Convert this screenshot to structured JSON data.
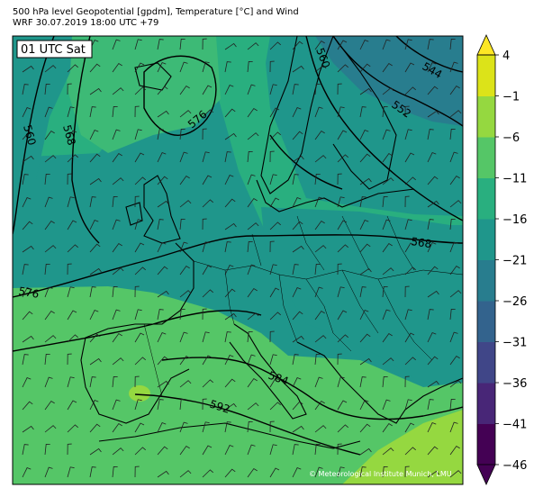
{
  "header": {
    "line1": "500 hPa level Geopotential [gpdm], Temperature [°C] and Wind",
    "line2": "WRF 30.07.2019 18:00 UTC +79"
  },
  "map": {
    "time_label": "01 UTC Sat",
    "copyright": "© Meteorological Institute Munich, LMU",
    "contour_labels": [
      "544",
      "552",
      "560",
      "560",
      "568",
      "568",
      "576",
      "576",
      "584",
      "592"
    ]
  },
  "colorbar": {
    "tick_labels": [
      "4",
      "−1",
      "−6",
      "−11",
      "−16",
      "−21",
      "−26",
      "−31",
      "−36",
      "−41",
      "−46"
    ],
    "colors": [
      "#440154",
      "#482677",
      "#404688",
      "#33638d",
      "#287d8e",
      "#1f968b",
      "#29af7f",
      "#55c667",
      "#95d840",
      "#dce319",
      "#fde725"
    ],
    "color_band_names": [
      "-46 to -41",
      "-41 to -36",
      "-36 to -31",
      "-31 to -26",
      "-26 to -21",
      "-21 to -16",
      "-16 to -11",
      "-11 to -6",
      "-6 to -1",
      "-1 to 4",
      "above 4"
    ]
  }
}
